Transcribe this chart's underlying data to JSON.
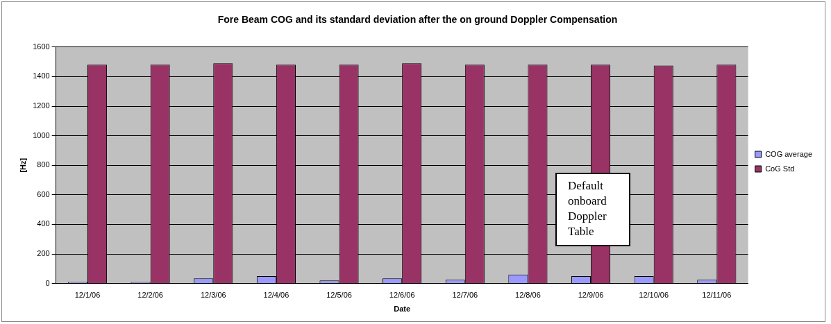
{
  "chart_data": {
    "type": "bar",
    "title": "Fore Beam COG and its standard deviation after the on ground Doppler Compensation",
    "xlabel": "Date",
    "ylabel": "[Hz]",
    "categories": [
      "12/1/06",
      "12/2/06",
      "12/3/06",
      "12/4/06",
      "12/5/06",
      "12/6/06",
      "12/7/06",
      "12/8/06",
      "12/9/06",
      "12/10/06",
      "12/11/06"
    ],
    "series": [
      {
        "name": "COG average",
        "color": "#9999ff",
        "values": [
          10,
          10,
          35,
          50,
          20,
          35,
          25,
          60,
          50,
          50,
          25
        ]
      },
      {
        "name": "CoG Std",
        "color": "#993366",
        "values": [
          1480,
          1480,
          1490,
          1480,
          1480,
          1490,
          1480,
          1480,
          1480,
          1475,
          1480
        ]
      }
    ],
    "ylim": [
      0,
      1600
    ],
    "yticks": [
      0,
      200,
      400,
      600,
      800,
      1000,
      1200,
      1400,
      1600
    ],
    "grid": "y",
    "legend": "right",
    "annotations": [
      "Default onboard Doppler Table"
    ]
  }
}
